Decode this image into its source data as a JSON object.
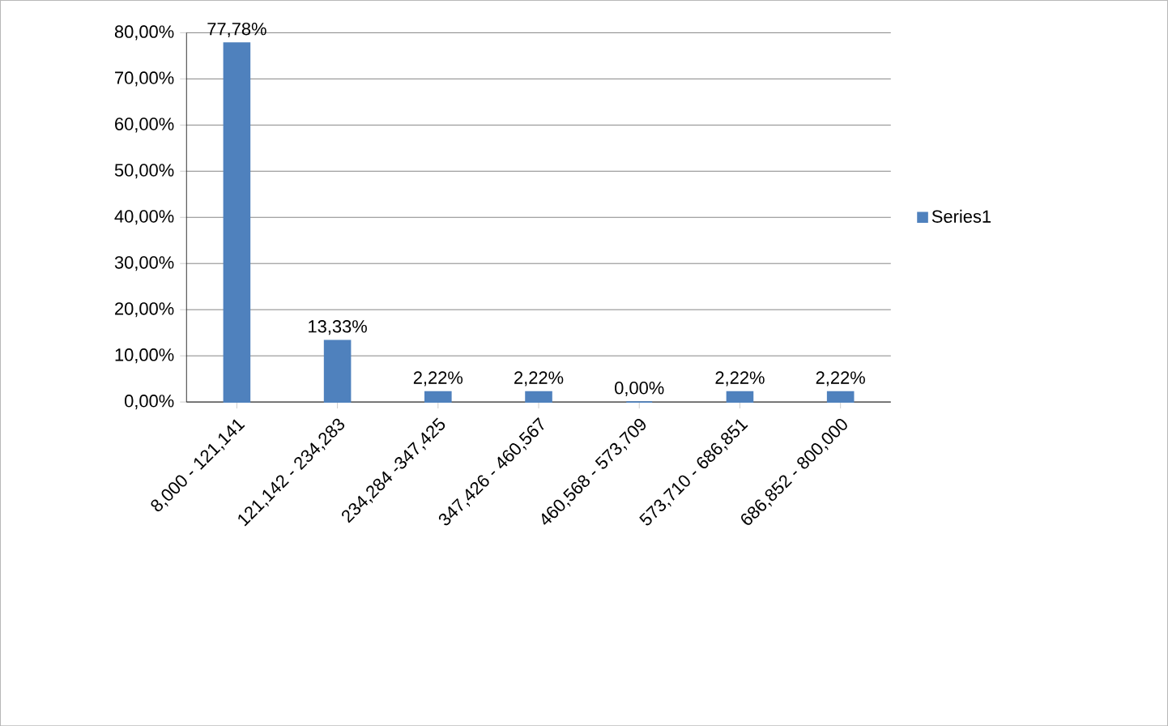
{
  "chart_data": {
    "type": "bar",
    "categories": [
      "8,000  - 121,141",
      "121,142  - 234,283",
      "234,284  -347,425",
      "347,426  - 460,567",
      "460,568  - 573,709",
      "573,710  - 686,851",
      "686,852  - 800,000"
    ],
    "series": [
      {
        "name": "Series1",
        "color": "#4f81bd",
        "values": [
          77.78,
          13.33,
          2.22,
          2.22,
          0,
          2.22,
          2.22
        ],
        "value_labels": [
          "77,78%",
          "13,33%",
          "2,22%",
          "2,22%",
          "0,00%",
          "2,22%",
          "2,22%"
        ]
      }
    ],
    "ylim": [
      0,
      80
    ],
    "yticks": [
      {
        "value": 0,
        "label": "0,00%"
      },
      {
        "value": 10,
        "label": "10,00%"
      },
      {
        "value": 20,
        "label": "20,00%"
      },
      {
        "value": 30,
        "label": "30,00%"
      },
      {
        "value": 40,
        "label": "40,00%"
      },
      {
        "value": 50,
        "label": "50,00%"
      },
      {
        "value": 60,
        "label": "60,00%"
      },
      {
        "value": 70,
        "label": "70,00%"
      },
      {
        "value": 80,
        "label": "80,00%"
      }
    ],
    "grid": "y",
    "legend": "right"
  }
}
